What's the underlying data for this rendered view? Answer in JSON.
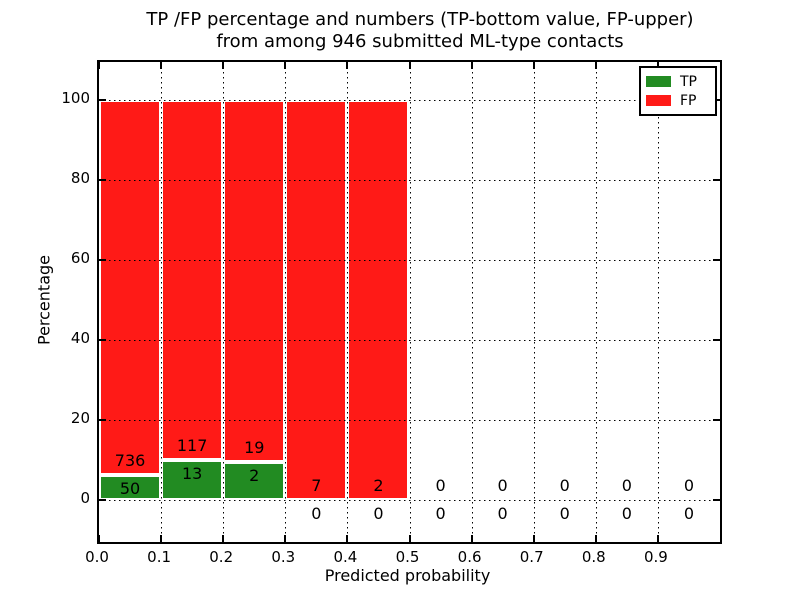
{
  "figure": {
    "title_line1": "TP /FP percentage and numbers (TP-bottom value, FP-upper)",
    "title_line2": "from among 946 submitted ML-type contacts",
    "xlabel": "Predicted probability",
    "ylabel": "Percentage"
  },
  "legend": {
    "position": "upper-right",
    "items": [
      {
        "label": "TP",
        "color": "#228b22"
      },
      {
        "label": "FP",
        "color": "#ff1a17"
      }
    ]
  },
  "colors": {
    "tp_green": "#228b22",
    "fp_red": "#ff1a17",
    "background": "#ffffff",
    "axis": "#000000",
    "bar_edge": "#ffffff"
  },
  "chart_data": {
    "type": "bar",
    "stacked": true,
    "title": "TP /FP percentage and numbers (TP-bottom value, FP-upper) from among 946 submitted ML-type contacts",
    "xlabel": "Predicted probability",
    "ylabel": "Percentage",
    "total_contacts": 946,
    "xlim": [
      0.0,
      1.0
    ],
    "ylim": [
      -10.5,
      110
    ],
    "grid": "dotted",
    "bin_width": 0.1,
    "bin_starts": [
      0.0,
      0.1,
      0.2,
      0.3,
      0.4,
      0.5,
      0.6,
      0.7,
      0.8,
      0.9
    ],
    "x_tick_labels": [
      "0.0",
      "0.1",
      "0.2",
      "0.3",
      "0.4",
      "0.5",
      "0.6",
      "0.7",
      "0.8",
      "0.9"
    ],
    "y_tick_values": [
      0,
      20,
      40,
      60,
      80,
      100
    ],
    "series": [
      {
        "name": "TP",
        "color": "#228b22",
        "counts": [
          50,
          13,
          2,
          0,
          0,
          0,
          0,
          0,
          0,
          0
        ],
        "pct": [
          6.36,
          10.0,
          9.52,
          0,
          0,
          0,
          0,
          0,
          0,
          0
        ]
      },
      {
        "name": "FP",
        "color": "#ff1a17",
        "counts": [
          736,
          117,
          19,
          7,
          2,
          0,
          0,
          0,
          0,
          0
        ],
        "pct": [
          93.64,
          90.0,
          90.48,
          100,
          100,
          0,
          0,
          0,
          0,
          0
        ]
      }
    ]
  }
}
